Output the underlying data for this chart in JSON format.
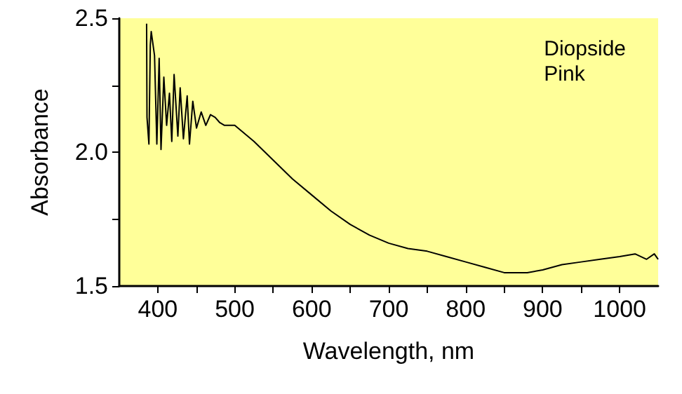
{
  "chart_data": {
    "type": "line",
    "xlabel": "Wavelength, nm",
    "ylabel": "Absorbance",
    "annotations": [
      "Diopside\nPink"
    ],
    "xlim": [
      350,
      1050
    ],
    "xticks": [
      400,
      {
        "value": 450,
        "label": null
      },
      500,
      {
        "value": 550,
        "label": null
      },
      600,
      {
        "value": 650,
        "label": null
      },
      700,
      {
        "value": 750,
        "label": null
      },
      800,
      {
        "value": 850,
        "label": null
      },
      900,
      {
        "value": 950,
        "label": null
      },
      1000
    ],
    "ylim": [
      1.5,
      2.5
    ],
    "yticks": [
      {
        "value": 1.5,
        "label": "1.5"
      },
      {
        "value": 1.75,
        "label": null
      },
      {
        "value": 2,
        "label": "2.0"
      },
      {
        "value": 2.25,
        "label": null
      },
      {
        "value": 2.5,
        "label": "2.5"
      }
    ],
    "grid": false,
    "marker": "none",
    "line_style": "solid",
    "series": [
      {
        "color": "#000000",
        "x": [
          385.5,
          386,
          388.5,
          390.3,
          391.5,
          395.8,
          398.8,
          401.8,
          404.2,
          407.9,
          411.5,
          415.2,
          418.2,
          421.2,
          426.1,
          429.1,
          433.3,
          438.2,
          441.2,
          445.5,
          450.3,
          456.4,
          462.4,
          468.5,
          474.5,
          480.6,
          486.7,
          500,
          525,
          550,
          575,
          600,
          625,
          650,
          675,
          700,
          725,
          750,
          775,
          800,
          825,
          850,
          880,
          900,
          925,
          950,
          975,
          1000,
          1020,
          1035,
          1045,
          1050
        ],
        "values": [
          2.48,
          2.13,
          2.03,
          2.4,
          2.45,
          2.36,
          2.03,
          2.35,
          2.01,
          2.28,
          2.1,
          2.22,
          2.04,
          2.29,
          2.06,
          2.24,
          2.05,
          2.21,
          2.03,
          2.19,
          2.09,
          2.15,
          2.1,
          2.14,
          2.13,
          2.11,
          2.1,
          2.1,
          2.04,
          1.97,
          1.9,
          1.84,
          1.78,
          1.73,
          1.69,
          1.66,
          1.64,
          1.63,
          1.61,
          1.59,
          1.57,
          1.55,
          1.55,
          1.56,
          1.58,
          1.59,
          1.6,
          1.61,
          1.62,
          1.6,
          1.62,
          1.6
        ]
      }
    ]
  }
}
